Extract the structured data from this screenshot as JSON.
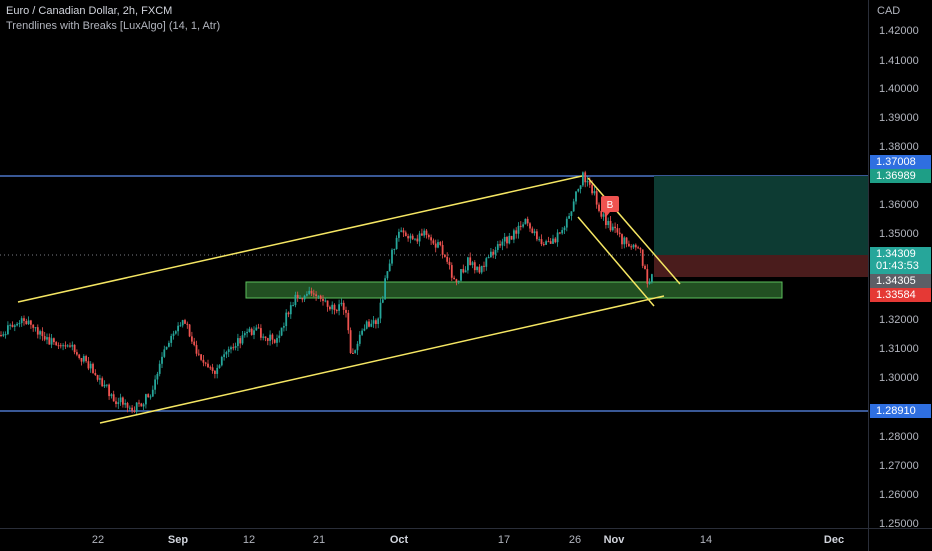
{
  "legend": {
    "title": "Euro / Canadian Dollar, 2h, FXCM",
    "indicator": "Trendlines with Breaks [LuxAlgo] (14, 1, Atr)"
  },
  "price_axis": {
    "currency": "CAD",
    "ticks": [
      "1.42000",
      "1.41000",
      "1.40000",
      "1.39000",
      "1.38000",
      "1.36000",
      "1.35000",
      "1.32000",
      "1.31000",
      "1.30000",
      "1.28000",
      "1.27000",
      "1.26000",
      "1.25000"
    ]
  },
  "time_axis": {
    "ticks": [
      {
        "label": "22",
        "bold": false
      },
      {
        "label": "Sep",
        "bold": true
      },
      {
        "label": "12",
        "bold": false
      },
      {
        "label": "21",
        "bold": false
      },
      {
        "label": "Oct",
        "bold": true
      },
      {
        "label": "17",
        "bold": false
      },
      {
        "label": "26",
        "bold": false
      },
      {
        "label": "Nov",
        "bold": true
      },
      {
        "label": "14",
        "bold": false
      },
      {
        "label": "Dec",
        "bold": true
      }
    ]
  },
  "price_labels": {
    "level_upper": "1.37008",
    "target": "1.36989",
    "last_price": "1.34309",
    "countdown": "01:43:53",
    "entry": "1.34305",
    "stop": "1.33584",
    "level_lower": "1.28910"
  },
  "break_marker": "B",
  "colors": {
    "background": "#000000",
    "up": "#26a69a",
    "down": "#ef5350",
    "trendline": "#f5e663",
    "level_line": "#5b8def",
    "zone_fill": "#2e6b2e",
    "target_zone": "#0d3b33",
    "stop_zone": "#4a1c1c",
    "last_price_label": "#26a69a",
    "entry_label": "#5d5f66",
    "stop_label": "#e53935",
    "level_label": "#2f6fe0"
  }
}
